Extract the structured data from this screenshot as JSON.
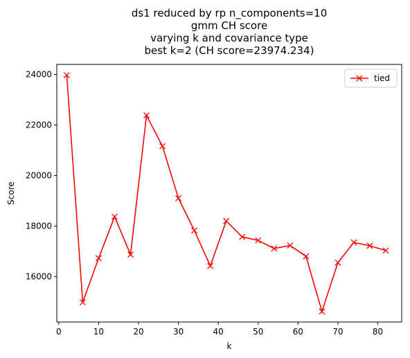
{
  "chart_data": {
    "type": "line",
    "title_lines": [
      "ds1 reduced by rp n_components=10",
      "gmm CH score",
      "varying k and covariance type",
      "best k=2 (CH score=23974.234)"
    ],
    "xlabel": "k",
    "ylabel": "Score",
    "xlim": [
      -0.5,
      86
    ],
    "ylim": [
      14200,
      24400
    ],
    "xticks": [
      0,
      10,
      20,
      30,
      40,
      50,
      60,
      70,
      80
    ],
    "yticks": [
      16000,
      18000,
      20000,
      22000,
      24000
    ],
    "legend_position": "top-right",
    "grid": false,
    "series": [
      {
        "name": "tied",
        "color": "#ff0000",
        "marker": "x",
        "x": [
          2,
          6,
          10,
          14,
          18,
          22,
          26,
          30,
          34,
          38,
          42,
          46,
          50,
          54,
          58,
          62,
          66,
          70,
          74,
          78,
          82
        ],
        "y": [
          23974.234,
          14980,
          16730,
          18370,
          16870,
          22380,
          21160,
          19100,
          17820,
          16420,
          18200,
          17570,
          17430,
          17110,
          17230,
          16800,
          14620,
          16550,
          17350,
          17220,
          17030
        ]
      }
    ]
  }
}
